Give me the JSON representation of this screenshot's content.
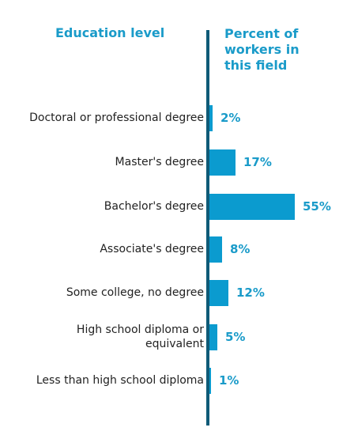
{
  "header": {
    "left": "Education level",
    "right": "Percent of\nworkers in\nthis field"
  },
  "colors": {
    "bar": "#0b9bcf",
    "axis": "#0f5b78",
    "header_text": "#1a9bc9",
    "value_text": "#1a9bc9"
  },
  "chart_data": {
    "type": "bar",
    "orientation": "horizontal",
    "title": "",
    "categories": [
      "Doctoral or professional degree",
      "Master's degree",
      "Bachelor's degree",
      "Associate's degree",
      "Some college, no degree",
      "High school diploma or\nequivalent",
      "Less than high school diploma"
    ],
    "values": [
      2,
      17,
      55,
      8,
      12,
      5,
      1
    ],
    "value_labels": [
      "2%",
      "17%",
      "55%",
      "8%",
      "12%",
      "5%",
      "1%"
    ],
    "xlabel": "Percent of workers in this field",
    "ylabel": "Education level",
    "xlim": [
      0,
      55
    ],
    "grid": false
  }
}
